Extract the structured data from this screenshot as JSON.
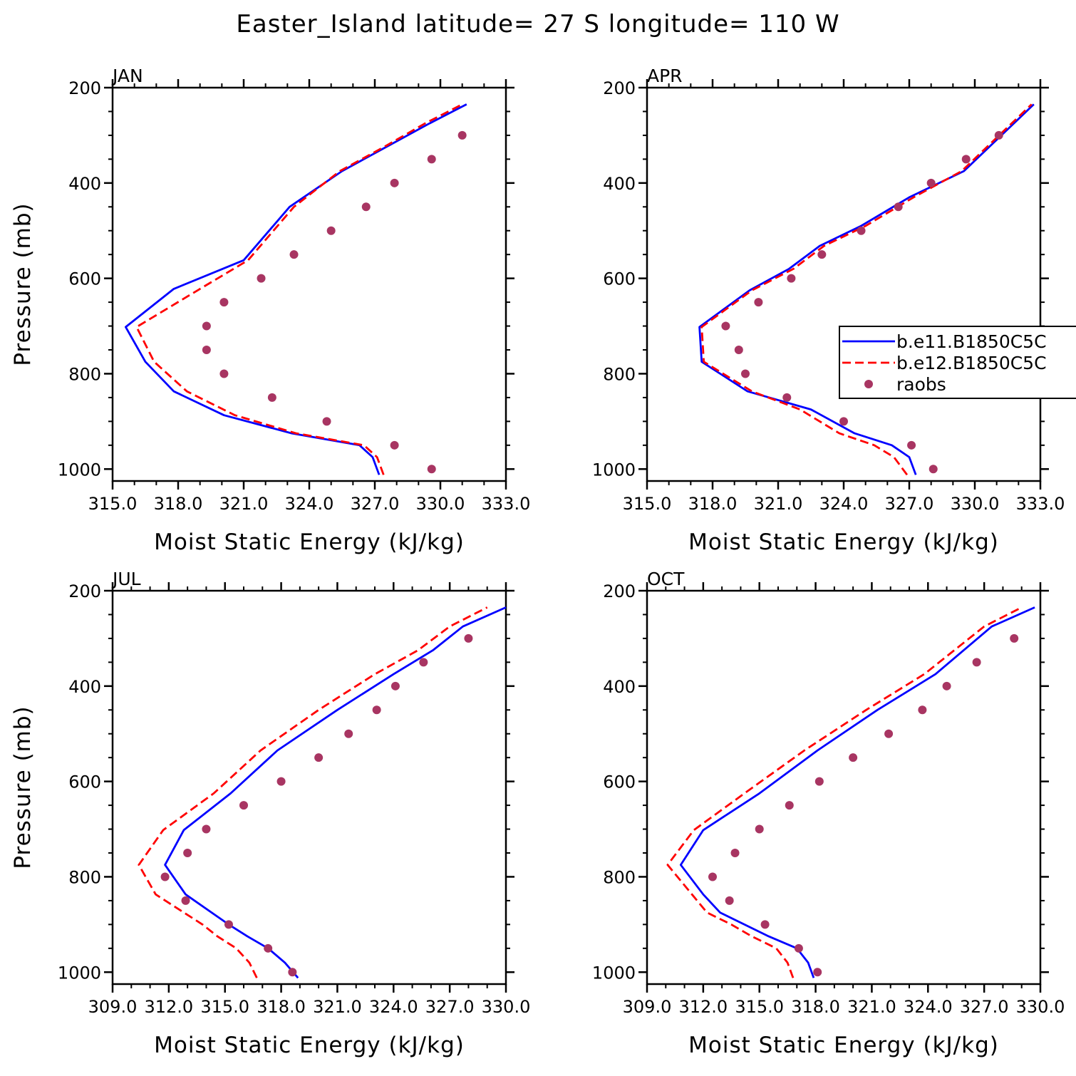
{
  "title": "Easter_Island  latitude= 27 S longitude= 110 W",
  "colors": {
    "series1": "#0000ff",
    "series2": "#ff0000",
    "obs": "#a83562"
  },
  "legend": {
    "items": [
      {
        "label": "b.e11.B1850C5C",
        "style": "solid"
      },
      {
        "label": "b.e12.B1850C5C",
        "style": "dashed"
      },
      {
        "label": "raobs",
        "style": "marker"
      }
    ]
  },
  "chart_data": [
    {
      "type": "line",
      "panel_title": "JAN",
      "xlabel": "Moist Static Energy (kJ/kg)",
      "ylabel": "Pressure (mb)",
      "xlim": [
        315.0,
        333.0
      ],
      "ylim": [
        1025,
        200
      ],
      "xticks": [
        "315.0",
        "318.0",
        "321.0",
        "324.0",
        "327.0",
        "330.0",
        "333.0"
      ],
      "yticks": [
        "200",
        "400",
        "600",
        "800",
        "1000"
      ],
      "series": [
        {
          "name": "b.e11.B1850C5C",
          "style": "solid",
          "x": [
            327.2,
            326.9,
            326.3,
            323.2,
            320.1,
            317.8,
            316.5,
            315.6,
            317.8,
            321.0,
            323.1,
            325.5,
            327.5,
            329.5,
            331.2
          ],
          "y": [
            1012,
            975,
            950,
            925,
            887,
            837,
            775,
            702,
            622,
            562,
            450,
            375,
            325,
            275,
            235
          ]
        },
        {
          "name": "b.e12.B1850C5C",
          "style": "dashed",
          "x": [
            327.4,
            327.1,
            326.5,
            323.4,
            320.6,
            318.4,
            316.9,
            316.1,
            319.0,
            321.2,
            323.3,
            325.4,
            327.4,
            329.3,
            331.0
          ],
          "y": [
            1012,
            975,
            950,
            925,
            887,
            837,
            775,
            702,
            622,
            562,
            450,
            375,
            325,
            275,
            235
          ]
        },
        {
          "name": "raobs",
          "style": "marker",
          "x": [
            329.6,
            327.9,
            324.8,
            322.3,
            320.1,
            319.3,
            319.3,
            320.1,
            321.8,
            323.3,
            325.0,
            326.6,
            327.9,
            329.6,
            331.0
          ],
          "y": [
            1000,
            950,
            900,
            850,
            800,
            750,
            700,
            650,
            600,
            550,
            500,
            450,
            400,
            350,
            300
          ]
        }
      ]
    },
    {
      "type": "line",
      "panel_title": "APR",
      "xlabel": "Moist Static Energy (kJ/kg)",
      "ylabel": "",
      "xlim": [
        315.0,
        333.0
      ],
      "ylim": [
        1025,
        200
      ],
      "xticks": [
        "315.0",
        "318.0",
        "321.0",
        "324.0",
        "327.0",
        "330.0",
        "333.0"
      ],
      "yticks": [
        "200",
        "400",
        "600",
        "800",
        "1000"
      ],
      "series": [
        {
          "name": "b.e11.B1850C5C",
          "style": "solid",
          "x": [
            327.3,
            327.0,
            326.2,
            324.5,
            322.5,
            319.6,
            317.5,
            317.4,
            319.7,
            321.5,
            322.9,
            324.8,
            327.0,
            329.5,
            332.7
          ],
          "y": [
            1012,
            975,
            950,
            925,
            875,
            837,
            775,
            702,
            625,
            580,
            532,
            490,
            430,
            375,
            235
          ]
        },
        {
          "name": "b.e12.B1850C5C",
          "style": "dashed",
          "x": [
            326.9,
            326.3,
            325.4,
            323.8,
            322.0,
            319.8,
            317.6,
            317.5,
            319.8,
            321.7,
            323.1,
            325.0,
            327.2,
            329.4,
            332.6
          ],
          "y": [
            1012,
            975,
            950,
            925,
            875,
            837,
            775,
            702,
            625,
            580,
            532,
            490,
            430,
            375,
            235
          ]
        },
        {
          "name": "raobs",
          "style": "marker",
          "x": [
            328.1,
            327.1,
            324.0,
            321.4,
            319.5,
            319.2,
            318.6,
            320.1,
            321.6,
            323.0,
            324.8,
            326.5,
            328.0,
            329.6,
            331.1
          ],
          "y": [
            1000,
            950,
            900,
            850,
            800,
            750,
            700,
            650,
            600,
            550,
            500,
            450,
            400,
            350,
            300
          ]
        }
      ]
    },
    {
      "type": "line",
      "panel_title": "JUL",
      "xlabel": "Moist Static Energy (kJ/kg)",
      "ylabel": "Pressure (mb)",
      "xlim": [
        309.0,
        330.0
      ],
      "ylim": [
        1025,
        200
      ],
      "xticks": [
        "309.0",
        "312.0",
        "315.0",
        "318.0",
        "321.0",
        "324.0",
        "327.0",
        "330.0"
      ],
      "yticks": [
        "200",
        "400",
        "600",
        "800",
        "1000"
      ],
      "series": [
        {
          "name": "b.e11.B1850C5C",
          "style": "solid",
          "x": [
            318.9,
            318.2,
            317.3,
            316.2,
            315.2,
            312.9,
            311.8,
            312.8,
            315.3,
            317.8,
            321.0,
            324.0,
            326.1,
            327.7,
            330.0
          ],
          "y": [
            1012,
            980,
            950,
            925,
            900,
            837,
            775,
            702,
            625,
            535,
            450,
            375,
            325,
            275,
            235
          ]
        },
        {
          "name": "b.e12.B1850C5C",
          "style": "dashed",
          "x": [
            316.7,
            316.3,
            315.6,
            314.6,
            313.8,
            311.3,
            310.4,
            311.7,
            314.4,
            316.9,
            320.0,
            323.0,
            325.3,
            327.0,
            329.0
          ],
          "y": [
            1012,
            980,
            950,
            925,
            900,
            837,
            775,
            702,
            625,
            535,
            450,
            375,
            325,
            275,
            235
          ]
        },
        {
          "name": "raobs",
          "style": "marker",
          "x": [
            318.6,
            317.3,
            315.2,
            312.9,
            311.8,
            313.0,
            314.0,
            316.0,
            318.0,
            320.0,
            321.6,
            323.1,
            324.1,
            325.6,
            328.0
          ],
          "y": [
            1000,
            950,
            900,
            850,
            800,
            750,
            700,
            650,
            600,
            550,
            500,
            450,
            400,
            350,
            300
          ]
        }
      ]
    },
    {
      "type": "line",
      "panel_title": "OCT",
      "xlabel": "Moist Static Energy (kJ/kg)",
      "ylabel": "",
      "xlim": [
        309.0,
        330.0
      ],
      "ylim": [
        1025,
        200
      ],
      "xticks": [
        "309.0",
        "312.0",
        "315.0",
        "318.0",
        "321.0",
        "324.0",
        "327.0",
        "330.0"
      ],
      "yticks": [
        "200",
        "400",
        "600",
        "800",
        "1000"
      ],
      "series": [
        {
          "name": "b.e11.B1850C5C",
          "style": "solid",
          "x": [
            317.9,
            317.6,
            317.0,
            315.5,
            314.2,
            312.9,
            312.0,
            310.8,
            312.0,
            315.0,
            318.1,
            321.3,
            324.4,
            327.4,
            329.7
          ],
          "y": [
            1012,
            980,
            950,
            925,
            900,
            875,
            837,
            775,
            702,
            625,
            535,
            450,
            375,
            275,
            235
          ]
        },
        {
          "name": "b.e12.B1850C5C",
          "style": "dashed",
          "x": [
            316.8,
            316.5,
            315.9,
            314.6,
            313.5,
            312.2,
            311.4,
            310.1,
            311.5,
            314.2,
            317.4,
            320.7,
            323.8,
            327.0,
            329.0
          ],
          "y": [
            1012,
            980,
            950,
            925,
            900,
            875,
            837,
            775,
            702,
            625,
            535,
            450,
            375,
            275,
            235
          ]
        },
        {
          "name": "raobs",
          "style": "marker",
          "x": [
            318.1,
            317.1,
            315.3,
            313.4,
            312.5,
            313.7,
            315.0,
            316.6,
            318.2,
            320.0,
            321.9,
            323.7,
            325.0,
            326.6,
            328.6
          ],
          "y": [
            1000,
            950,
            900,
            850,
            800,
            750,
            700,
            650,
            600,
            550,
            500,
            450,
            400,
            350,
            300
          ]
        }
      ]
    }
  ]
}
